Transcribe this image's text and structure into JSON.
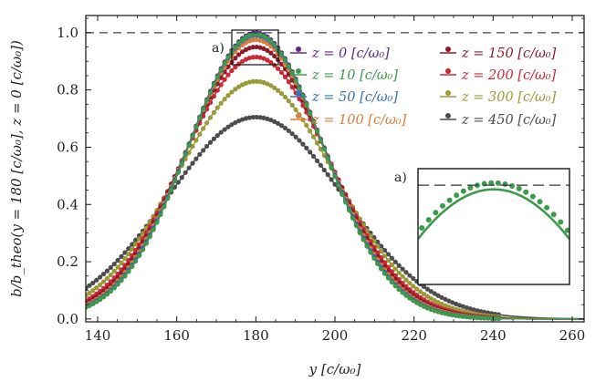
{
  "chart_data": {
    "type": "line",
    "xlabel": "y [c/ω₀]",
    "ylabel": "b/b_theo(y = 180 [c/ω₀], z = 0 [c/ω₀])",
    "xlim": [
      137,
      263
    ],
    "ylim": [
      -0.01,
      1.06
    ],
    "xticks": [
      "140",
      "160",
      "180",
      "200",
      "220",
      "240",
      "260"
    ],
    "yticks": [
      "0.0",
      "0.2",
      "0.4",
      "0.6",
      "0.8",
      "1.0"
    ],
    "reference_line": {
      "y": 1.0,
      "style": "dashed"
    },
    "center": 180,
    "legend_placement": "top-right",
    "legend_columns": 2,
    "series": [
      {
        "name": "z = 0 [c/ω₀]",
        "color": "#5b2a86",
        "peak": 1.0,
        "width": 17.0,
        "marker": "dot"
      },
      {
        "name": "z = 10 [c/ω₀]",
        "color": "#3d9a4c",
        "peak": 0.995,
        "width": 17.0,
        "marker": "dot"
      },
      {
        "name": "z = 50 [c/ω₀]",
        "color": "#3a6fb5",
        "peak": 0.99,
        "width": 17.2,
        "marker": "dot"
      },
      {
        "name": "z = 100 [c/ω₀]",
        "color": "#e07b39",
        "peak": 0.975,
        "width": 17.5,
        "marker": "dot"
      },
      {
        "name": "z = 150 [c/ω₀]",
        "color": "#8e1b2b",
        "peak": 0.95,
        "width": 18.0,
        "marker": "dot"
      },
      {
        "name": "z = 200 [c/ω₀]",
        "color": "#cc2936",
        "peak": 0.915,
        "width": 18.6,
        "marker": "dot"
      },
      {
        "name": "z = 300 [c/ω₀]",
        "color": "#9a9a3a",
        "peak": 0.83,
        "width": 20.0,
        "marker": "dot"
      },
      {
        "name": "z = 450 [c/ω₀]",
        "color": "#4d4d4d",
        "peak": 0.705,
        "width": 22.2,
        "marker": "dot"
      }
    ],
    "inset": {
      "label": "a)",
      "xlim": [
        174,
        186
      ],
      "ylim": [
        0.88,
        1.02
      ],
      "series": "z = 10 [c/ω₀]"
    }
  },
  "legend_labels": {
    "items": [
      {
        "z": "0",
        "unit": "[c/ω₀]"
      },
      {
        "z": "10",
        "unit": "[c/ω₀]"
      },
      {
        "z": "50",
        "unit": "[c/ω₀]"
      },
      {
        "z": "100",
        "unit": "[c/ω₀]"
      },
      {
        "z": "150",
        "unit": "[c/ω₀]"
      },
      {
        "z": "200",
        "unit": "[c/ω₀]"
      },
      {
        "z": "300",
        "unit": "[c/ω₀]"
      },
      {
        "z": "450",
        "unit": "[c/ω₀]"
      }
    ]
  },
  "annotations": {
    "main_zoom_label": "a)",
    "inset_label": "a)"
  }
}
